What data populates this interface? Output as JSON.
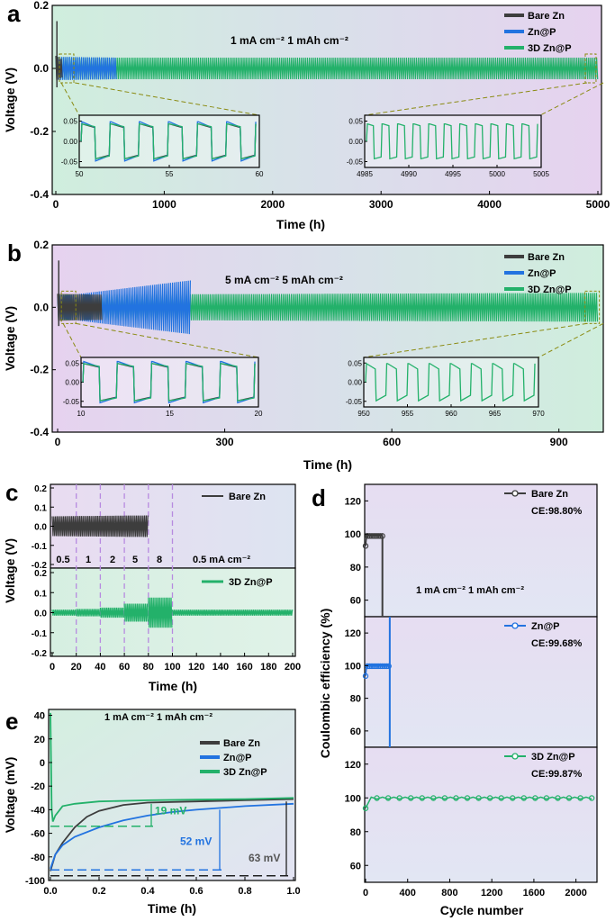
{
  "colors": {
    "bare": "#3d3d3d",
    "znp": "#2273e0",
    "d3": "#23b16a",
    "inset_frame": "#8b8b12",
    "dash": "#b78ae0"
  },
  "chart_data": [
    {
      "panel": "a",
      "type": "line",
      "condition_label": "1 mA cm⁻²   1 mAh cm⁻²",
      "xlabel": "Time (h)",
      "ylabel": "Voltage (V)",
      "xlim": [
        0,
        5000
      ],
      "ylim": [
        -0.4,
        0.2
      ],
      "x_ticks": [
        "0",
        "1000",
        "2000",
        "3000",
        "4000",
        "5000"
      ],
      "y_ticks": [
        "-0.4",
        "-0.2",
        "0.0",
        "0.2"
      ],
      "legend": [
        "Bare Zn",
        "Zn@P",
        "3D Zn@P"
      ],
      "series": [
        {
          "name": "Bare Zn",
          "x_end": 60,
          "amplitude": 0.04,
          "spike": 0.15
        },
        {
          "name": "Zn@P",
          "x_end": 560,
          "amplitude": 0.035
        },
        {
          "name": "3D Zn@P",
          "x_end": 5000,
          "amplitude": 0.03
        }
      ],
      "insets": [
        {
          "range": [
            50,
            60
          ],
          "ticks": [
            "50",
            "55",
            "60"
          ],
          "y_ticks": [
            "0.05",
            "0.00",
            "-0.05"
          ]
        },
        {
          "range": [
            4985,
            5005
          ],
          "ticks": [
            "4985",
            "4990",
            "4995",
            "5000",
            "5005"
          ],
          "y_ticks": [
            "0.05",
            "0.00",
            "-0.05"
          ]
        }
      ]
    },
    {
      "panel": "b",
      "type": "line",
      "condition_label": "5 mA cm⁻²   5 mAh cm⁻²",
      "xlabel": "Time (h)",
      "ylabel": "Voltage (V)",
      "xlim": [
        0,
        970
      ],
      "ylim": [
        -0.4,
        0.2
      ],
      "x_ticks": [
        "0",
        "300",
        "600",
        "900"
      ],
      "y_ticks": [
        "-0.4",
        "-0.2",
        "0.0",
        "0.2"
      ],
      "legend": [
        "Bare Zn",
        "Zn@P",
        "3D Zn@P"
      ],
      "series": [
        {
          "name": "Bare Zn",
          "x_end": 80,
          "amplitude": 0.05,
          "spike": 0.15
        },
        {
          "name": "Zn@P",
          "x_end": 240,
          "amplitude": 0.1
        },
        {
          "name": "3D Zn@P",
          "x_end": 970,
          "amplitude": 0.05
        }
      ],
      "insets": [
        {
          "range": [
            10,
            20
          ],
          "ticks": [
            "10",
            "15",
            "20"
          ],
          "y_ticks": [
            "0.05",
            "0.00",
            "-0.05"
          ]
        },
        {
          "range": [
            950,
            970
          ],
          "ticks": [
            "950",
            "955",
            "960",
            "965",
            "970"
          ],
          "y_ticks": [
            "0.05",
            "0.00",
            "-0.05"
          ]
        }
      ]
    },
    {
      "panel": "c",
      "type": "line",
      "xlabel": "Time (h)",
      "ylabel": "Voltage (V)",
      "xlim": [
        0,
        200
      ],
      "ylim": [
        -0.2,
        0.2
      ],
      "x_ticks": [
        "0",
        "20",
        "40",
        "60",
        "80",
        "100",
        "120",
        "140",
        "160",
        "180",
        "200"
      ],
      "y_ticks": [
        "0.2",
        "0.1",
        "0.0",
        "-0.1",
        "-0.2"
      ],
      "rate_labels": [
        "0.5",
        "1",
        "2",
        "5",
        "8",
        "0.5 mA cm⁻²"
      ],
      "rate_boundaries": [
        20,
        40,
        60,
        80,
        100
      ],
      "series": [
        {
          "name": "Bare Zn",
          "x_end": 80,
          "amplitude": 0.05
        },
        {
          "name": "3D Zn@P",
          "x_end": 200,
          "segment_amplitudes": [
            0.015,
            0.018,
            0.025,
            0.045,
            0.075,
            0.015
          ]
        }
      ]
    },
    {
      "panel": "d",
      "type": "scatter",
      "condition_label": "1 mA cm⁻² 1 mAh cm⁻²",
      "xlabel": "Cycle number",
      "ylabel": "Coulombic efficiency (%)",
      "xlim": [
        0,
        2200
      ],
      "ylim": [
        50,
        130
      ],
      "x_ticks": [
        "0",
        "400",
        "800",
        "1200",
        "1600",
        "2000"
      ],
      "y_ticks": [
        "120",
        "100",
        "80",
        "60"
      ],
      "series": [
        {
          "name": "Bare Zn",
          "ce_label": "CE:98.80%",
          "cycles": 160,
          "mean": 98.8
        },
        {
          "name": "Zn@P",
          "ce_label": "CE:99.68%",
          "cycles": 230,
          "mean": 99.68
        },
        {
          "name": "3D Zn@P",
          "ce_label": "CE:99.87%",
          "cycles": 2150,
          "mean": 99.87
        }
      ]
    },
    {
      "panel": "e",
      "type": "line",
      "condition_label": "1 mA cm⁻² 1 mAh cm⁻²",
      "xlabel": "Time (h)",
      "ylabel": "Voltage (mV)",
      "xlim": [
        0,
        1.0
      ],
      "ylim": [
        -100,
        45
      ],
      "x_ticks": [
        "0.0",
        "0.2",
        "0.4",
        "0.6",
        "0.8",
        "1.0"
      ],
      "y_ticks": [
        "40",
        "20",
        "0",
        "-20",
        "-40",
        "-60",
        "-80",
        "-100"
      ],
      "legend": [
        "Bare Zn",
        "Zn@P",
        "3D Zn@P"
      ],
      "series": [
        {
          "name": "Bare Zn",
          "x": [
            0,
            0.02,
            0.05,
            0.1,
            0.15,
            0.2,
            0.3,
            0.4,
            0.6,
            0.8,
            1.0
          ],
          "y": [
            -92,
            -78,
            -68,
            -55,
            -46,
            -41,
            -36,
            -34,
            -33,
            -32,
            -31
          ]
        },
        {
          "name": "Zn@P",
          "x": [
            0,
            0.02,
            0.05,
            0.1,
            0.2,
            0.3,
            0.4,
            0.5,
            0.6,
            0.8,
            1.0
          ],
          "y": [
            -90,
            -78,
            -70,
            -63,
            -55,
            -49,
            -45,
            -42,
            -40,
            -37,
            -35
          ]
        },
        {
          "name": "3D Zn@P",
          "x": [
            0,
            0.005,
            0.01,
            0.02,
            0.05,
            0.1,
            0.2,
            0.4,
            0.6,
            0.8,
            1.0
          ],
          "y": [
            42,
            -40,
            -50,
            -45,
            -37,
            -35,
            -33,
            -32,
            -31.5,
            -31,
            -30
          ]
        }
      ],
      "overpotentials": [
        {
          "label": "19 mV",
          "level": -54,
          "series": "3D Zn@P"
        },
        {
          "label": "52 mV",
          "level": -91,
          "series": "Zn@P"
        },
        {
          "label": "63 mV",
          "level": -96,
          "series": "Bare Zn"
        }
      ]
    }
  ]
}
